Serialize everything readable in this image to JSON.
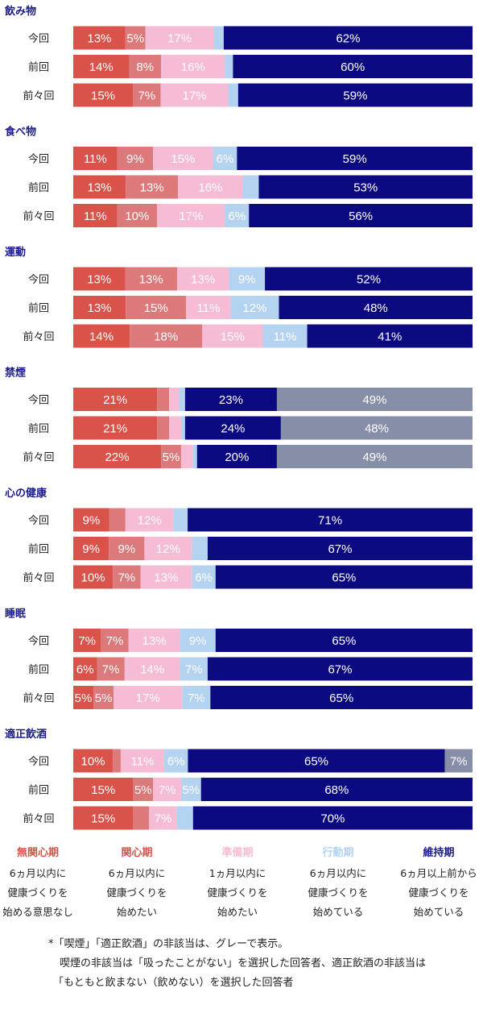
{
  "chart_data": {
    "type": "stacked-bar-horizontal",
    "unit": "%",
    "stages": [
      {
        "name": "無関心期",
        "lines": [
          "6ヵ月以内に",
          "健康づくりを",
          "始める意思なし"
        ],
        "color": "#d9534a",
        "label_color": "#d9534a"
      },
      {
        "name": "関心期",
        "lines": [
          "6ヵ月以内に",
          "健康づくりを",
          "始めたい"
        ],
        "color": "#dc7a7b",
        "label_color": "#d9534a"
      },
      {
        "name": "準備期",
        "lines": [
          "1ヵ月以内に",
          "健康づくりを",
          "始めたい"
        ],
        "color": "#f6bcd5",
        "label_color": "#f6bcd5"
      },
      {
        "name": "行動期",
        "lines": [
          "6ヵ月以内に",
          "健康づくりを",
          "始めている"
        ],
        "color": "#b4d3f0",
        "label_color": "#b4d3f0"
      },
      {
        "name": "維持期",
        "lines": [
          "6ヵ月以上前から",
          "健康づくりを",
          "始めている"
        ],
        "color": "#0c0a80",
        "label_color": "#1a1a8c"
      }
    ],
    "na_color": "#878ea8",
    "groups": [
      {
        "title": "飲み物",
        "rows": [
          {
            "label": "今回",
            "values": [
              13,
              5,
              17,
              2.5,
              62
            ],
            "labels": [
              "13%",
              "5%",
              "17%",
              "",
              "62%"
            ]
          },
          {
            "label": "前回",
            "values": [
              14,
              8,
              16,
              2,
              60
            ],
            "labels": [
              "14%",
              "8%",
              "16%",
              "",
              "60%"
            ]
          },
          {
            "label": "前々回",
            "values": [
              15,
              7,
              17,
              2.5,
              59
            ],
            "labels": [
              "15%",
              "7%",
              "17%",
              "",
              "59%"
            ]
          }
        ]
      },
      {
        "title": "食べ物",
        "rows": [
          {
            "label": "今回",
            "values": [
              11,
              9,
              15,
              6,
              59
            ],
            "labels": [
              "11%",
              "9%",
              "15%",
              "6%",
              "59%"
            ]
          },
          {
            "label": "前回",
            "values": [
              13,
              13,
              16,
              4,
              53
            ],
            "labels": [
              "13%",
              "13%",
              "16%",
              "",
              "53%"
            ]
          },
          {
            "label": "前々回",
            "values": [
              11,
              10,
              17,
              6,
              56
            ],
            "labels": [
              "11%",
              "10%",
              "17%",
              "6%",
              "56%"
            ]
          }
        ]
      },
      {
        "title": "運動",
        "rows": [
          {
            "label": "今回",
            "values": [
              13,
              13,
              13,
              9,
              52
            ],
            "labels": [
              "13%",
              "13%",
              "13%",
              "9%",
              "52%"
            ]
          },
          {
            "label": "前回",
            "values": [
              13,
              15,
              11,
              12,
              48
            ],
            "labels": [
              "13%",
              "15%",
              "11%",
              "12%",
              "48%"
            ]
          },
          {
            "label": "前々回",
            "values": [
              14,
              18,
              15,
              11,
              41
            ],
            "labels": [
              "14%",
              "18%",
              "15%",
              "11%",
              "41%"
            ]
          }
        ]
      },
      {
        "title": "禁煙",
        "rows": [
          {
            "label": "今回",
            "values": [
              21,
              3,
              2.5,
              1.5,
              23,
              49
            ],
            "labels": [
              "21%",
              "",
              "",
              "",
              "23%",
              "49%"
            ]
          },
          {
            "label": "前回",
            "values": [
              21,
              3,
              3,
              1,
              24,
              48
            ],
            "labels": [
              "21%",
              "",
              "",
              "",
              "24%",
              "48%"
            ]
          },
          {
            "label": "前々回",
            "values": [
              22,
              5,
              3,
              1,
              20,
              49
            ],
            "labels": [
              "22%",
              "5%",
              "",
              "",
              "20%",
              "49%"
            ]
          }
        ]
      },
      {
        "title": "心の健康",
        "rows": [
          {
            "label": "今回",
            "values": [
              9,
              4,
              12,
              3.5,
              71
            ],
            "labels": [
              "9%",
              "",
              "12%",
              "",
              "71%"
            ]
          },
          {
            "label": "前回",
            "values": [
              9,
              9,
              12,
              4,
              67
            ],
            "labels": [
              "9%",
              "9%",
              "12%",
              "",
              "67%"
            ]
          },
          {
            "label": "前々回",
            "values": [
              10,
              7,
              13,
              6,
              65
            ],
            "labels": [
              "10%",
              "7%",
              "13%",
              "6%",
              "65%"
            ]
          }
        ]
      },
      {
        "title": "睡眠",
        "rows": [
          {
            "label": "今回",
            "values": [
              7,
              7,
              13,
              9,
              65
            ],
            "labels": [
              "7%",
              "7%",
              "13%",
              "9%",
              "65%"
            ]
          },
          {
            "label": "前回",
            "values": [
              6,
              7,
              14,
              7,
              67
            ],
            "labels": [
              "6%",
              "7%",
              "14%",
              "7%",
              "67%"
            ]
          },
          {
            "label": "前々回",
            "values": [
              5,
              5,
              17,
              7,
              65
            ],
            "labels": [
              "5%",
              "5%",
              "17%",
              "7%",
              "65%"
            ]
          }
        ]
      },
      {
        "title": "適正飲酒",
        "rows": [
          {
            "label": "今回",
            "values": [
              10,
              2,
              11,
              6,
              65,
              7
            ],
            "labels": [
              "10%",
              "",
              "11%",
              "6%",
              "65%",
              "7%"
            ]
          },
          {
            "label": "前回",
            "values": [
              15,
              5,
              7,
              5,
              68,
              0
            ],
            "labels": [
              "15%",
              "5%",
              "7%",
              "5%",
              "68%",
              ""
            ]
          },
          {
            "label": "前々回",
            "values": [
              15,
              4,
              7,
              4,
              70,
              0
            ],
            "labels": [
              "15%",
              "",
              "7%",
              "",
              "70%",
              ""
            ]
          }
        ]
      }
    ]
  },
  "footnote": {
    "line1": "*「喫煙」「適正飲酒」の非該当は、グレーで表示。",
    "line2": "喫煙の非該当は「吸ったことがない」を選択した回答者、適正飲酒の非該当は",
    "line3": "「もともと飲まない（飲めない）を選択した回答者"
  }
}
